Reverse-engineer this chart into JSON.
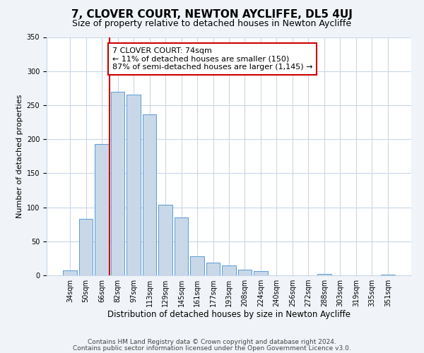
{
  "title": "7, CLOVER COURT, NEWTON AYCLIFFE, DL5 4UJ",
  "subtitle": "Size of property relative to detached houses in Newton Aycliffe",
  "xlabel": "Distribution of detached houses by size in Newton Aycliffe",
  "ylabel": "Number of detached properties",
  "bar_labels": [
    "34sqm",
    "50sqm",
    "66sqm",
    "82sqm",
    "97sqm",
    "113sqm",
    "129sqm",
    "145sqm",
    "161sqm",
    "177sqm",
    "193sqm",
    "208sqm",
    "224sqm",
    "240sqm",
    "256sqm",
    "272sqm",
    "288sqm",
    "303sqm",
    "319sqm",
    "335sqm",
    "351sqm"
  ],
  "bar_values": [
    7,
    83,
    193,
    270,
    265,
    236,
    104,
    85,
    28,
    19,
    15,
    8,
    6,
    0,
    0,
    0,
    2,
    0,
    0,
    0,
    1
  ],
  "bar_color": "#c8d8e8",
  "bar_edge_color": "#5b9bd5",
  "vline_color": "#cc0000",
  "annotation_text": "7 CLOVER COURT: 74sqm\n← 11% of detached houses are smaller (150)\n87% of semi-detached houses are larger (1,145) →",
  "annotation_box_color": "#ffffff",
  "annotation_box_edge_color": "#cc0000",
  "ylim": [
    0,
    350
  ],
  "yticks": [
    0,
    50,
    100,
    150,
    200,
    250,
    300,
    350
  ],
  "footer_line1": "Contains HM Land Registry data © Crown copyright and database right 2024.",
  "footer_line2": "Contains public sector information licensed under the Open Government Licence v3.0.",
  "bg_color": "#f0f4f8",
  "plot_bg_color": "#ffffff",
  "grid_color": "#c8d8e8",
  "title_fontsize": 11,
  "subtitle_fontsize": 9,
  "xlabel_fontsize": 8.5,
  "ylabel_fontsize": 8,
  "tick_fontsize": 7,
  "annotation_fontsize": 8,
  "footer_fontsize": 6.5
}
